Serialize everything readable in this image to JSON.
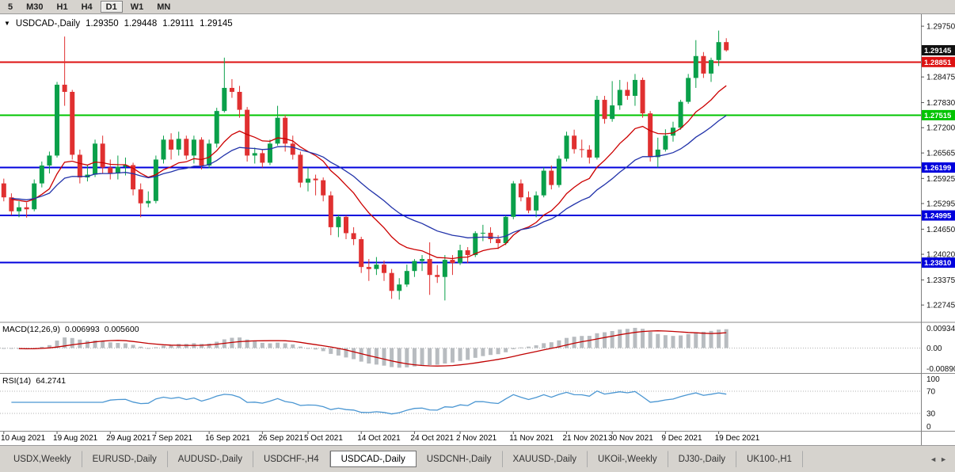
{
  "toolbar": {
    "timeframes": [
      {
        "label": "5",
        "active": false
      },
      {
        "label": "M30",
        "active": false
      },
      {
        "label": "H1",
        "active": false
      },
      {
        "label": "H4",
        "active": false
      },
      {
        "label": "D1",
        "active": true
      },
      {
        "label": "W1",
        "active": false
      },
      {
        "label": "MN",
        "active": false
      }
    ]
  },
  "title": {
    "symbol": "USDCAD-,Daily",
    "open": "1.29350",
    "high": "1.29448",
    "low": "1.29111",
    "close": "1.29145"
  },
  "indicators": {
    "macd": {
      "name": "MACD(12,26,9)",
      "main": "0.006993",
      "signal": "0.005600",
      "fast": 12,
      "slow": 26,
      "smoothing": 9,
      "ylim": [
        -0.0105,
        0.0105
      ],
      "axis": [
        {
          "label": "0.009345",
          "value": 0.009345
        },
        {
          "label": "0.00",
          "value": 0
        },
        {
          "label": "-0.008901",
          "value": -0.008901
        }
      ],
      "hist_color": "#b8bcc0",
      "signal_color": "#c00000"
    },
    "rsi": {
      "name": "RSI(14)",
      "value": "64.2741",
      "period": 14,
      "ylim": [
        0,
        100
      ],
      "levels": [
        70,
        30
      ],
      "axis": [
        {
          "label": "100",
          "value": 100
        },
        {
          "label": "70",
          "value": 70
        },
        {
          "label": "30",
          "value": 30
        },
        {
          "label": "0",
          "value": 0
        }
      ],
      "color": "#4a96d2"
    }
  },
  "price_axis": {
    "ticks": [
      {
        "label": "1.29750",
        "value": 1.2975
      },
      {
        "label": "1.28475",
        "value": 1.28475
      },
      {
        "label": "1.27830",
        "value": 1.2783
      },
      {
        "label": "1.27200",
        "value": 1.272
      },
      {
        "label": "1.26565",
        "value": 1.26565
      },
      {
        "label": "1.25925",
        "value": 1.25925
      },
      {
        "label": "1.25295",
        "value": 1.25295
      },
      {
        "label": "1.24650",
        "value": 1.2465
      },
      {
        "label": "1.24020",
        "value": 1.2402
      },
      {
        "label": "1.23375",
        "value": 1.23375
      },
      {
        "label": "1.22745",
        "value": 1.22745
      }
    ]
  },
  "levels": [
    {
      "label": "1.29145",
      "value": 1.29145,
      "color": "#101010",
      "line": false,
      "kind": "current-price"
    },
    {
      "label": "1.28851",
      "value": 1.28851,
      "color": "#dd1111",
      "line": true,
      "kind": "resistance"
    },
    {
      "label": "1.27515",
      "value": 1.27515,
      "color": "#00c400",
      "line": true,
      "kind": "support"
    },
    {
      "label": "1.26199",
      "value": 1.26199,
      "color": "#0000dd",
      "line": true,
      "kind": "support"
    },
    {
      "label": "1.24995",
      "value": 1.24995,
      "color": "#0000dd",
      "line": true,
      "kind": "support"
    },
    {
      "label": "1.23810",
      "value": 1.2381,
      "color": "#0000dd",
      "line": true,
      "kind": "support"
    }
  ],
  "time_axis": {
    "labels": [
      {
        "text": "10 Aug 2021",
        "i": 0
      },
      {
        "text": "19 Aug 2021",
        "i": 7
      },
      {
        "text": "29 Aug 2021",
        "i": 14
      },
      {
        "text": "7 Sep 2021",
        "i": 20
      },
      {
        "text": "16 Sep 2021",
        "i": 27
      },
      {
        "text": "26 Sep 2021",
        "i": 34
      },
      {
        "text": "5 Oct 2021",
        "i": 40
      },
      {
        "text": "14 Oct 2021",
        "i": 47
      },
      {
        "text": "24 Oct 2021",
        "i": 54
      },
      {
        "text": "2 Nov 2021",
        "i": 60
      },
      {
        "text": "11 Nov 2021",
        "i": 67
      },
      {
        "text": "21 Nov 2021",
        "i": 74
      },
      {
        "text": "30 Nov 2021",
        "i": 80
      },
      {
        "text": "9 Dec 2021",
        "i": 87
      },
      {
        "text": "19 Dec 2021",
        "i": 94
      }
    ]
  },
  "chart_data": {
    "type": "candlestick",
    "symbol": "USDCAD",
    "period": "Daily",
    "ylim": [
      1.2235,
      1.3005
    ],
    "up_color": "#0aa04a",
    "down_color": "#e03030",
    "overlays": [
      {
        "type": "ema",
        "period": 13,
        "color": "#cc0000",
        "name": "ma-fast"
      },
      {
        "type": "ema",
        "period": 26,
        "color": "#2233aa",
        "name": "ma-slow"
      }
    ],
    "ohlc": [
      [
        1.258,
        1.2592,
        1.2535,
        1.2545
      ],
      [
        1.2545,
        1.2555,
        1.25,
        1.251
      ],
      [
        1.251,
        1.2535,
        1.2495,
        1.252
      ],
      [
        1.252,
        1.2532,
        1.2494,
        1.2515
      ],
      [
        1.2515,
        1.259,
        1.251,
        1.258
      ],
      [
        1.258,
        1.2635,
        1.257,
        1.2625
      ],
      [
        1.2625,
        1.266,
        1.2605,
        1.265
      ],
      [
        1.265,
        1.2835,
        1.2645,
        1.2828
      ],
      [
        1.2828,
        1.2949,
        1.2775,
        1.281
      ],
      [
        1.281,
        1.2815,
        1.264,
        1.2652
      ],
      [
        1.2652,
        1.2665,
        1.258,
        1.2595
      ],
      [
        1.2595,
        1.2625,
        1.2585,
        1.2602
      ],
      [
        1.2602,
        1.269,
        1.2596,
        1.268
      ],
      [
        1.268,
        1.27,
        1.2605,
        1.262
      ],
      [
        1.262,
        1.264,
        1.259,
        1.2605
      ],
      [
        1.2605,
        1.265,
        1.259,
        1.2622
      ],
      [
        1.2622,
        1.2645,
        1.26,
        1.2626
      ],
      [
        1.2626,
        1.2632,
        1.255,
        1.2565
      ],
      [
        1.2565,
        1.258,
        1.2495,
        1.253
      ],
      [
        1.253,
        1.256,
        1.252,
        1.2536
      ],
      [
        1.2536,
        1.265,
        1.253,
        1.264
      ],
      [
        1.264,
        1.27,
        1.263,
        1.269
      ],
      [
        1.269,
        1.2706,
        1.264,
        1.2665
      ],
      [
        1.2665,
        1.271,
        1.265,
        1.2692
      ],
      [
        1.2692,
        1.27,
        1.264,
        1.265
      ],
      [
        1.265,
        1.27,
        1.263,
        1.269
      ],
      [
        1.269,
        1.2696,
        1.2615,
        1.2625
      ],
      [
        1.2625,
        1.269,
        1.2618,
        1.268
      ],
      [
        1.268,
        1.277,
        1.267,
        1.2762
      ],
      [
        1.2762,
        1.2896,
        1.2758,
        1.282
      ],
      [
        1.282,
        1.2842,
        1.2795,
        1.281
      ],
      [
        1.281,
        1.2825,
        1.2745,
        1.2765
      ],
      [
        1.2765,
        1.2772,
        1.2635,
        1.265
      ],
      [
        1.265,
        1.267,
        1.263,
        1.2656
      ],
      [
        1.2656,
        1.2665,
        1.262,
        1.2632
      ],
      [
        1.2632,
        1.269,
        1.2626,
        1.268
      ],
      [
        1.268,
        1.2775,
        1.2675,
        1.2745
      ],
      [
        1.2745,
        1.2752,
        1.266,
        1.268
      ],
      [
        1.268,
        1.27,
        1.264,
        1.2652
      ],
      [
        1.2652,
        1.266,
        1.257,
        1.2582
      ],
      [
        1.2582,
        1.262,
        1.256,
        1.2592
      ],
      [
        1.2592,
        1.2602,
        1.255,
        1.2588
      ],
      [
        1.2588,
        1.2595,
        1.2535,
        1.255
      ],
      [
        1.255,
        1.256,
        1.245,
        1.247
      ],
      [
        1.247,
        1.2502,
        1.2445,
        1.2496
      ],
      [
        1.2496,
        1.25,
        1.244,
        1.2455
      ],
      [
        1.2455,
        1.247,
        1.2425,
        1.244
      ],
      [
        1.244,
        1.2446,
        1.2355,
        1.237
      ],
      [
        1.237,
        1.239,
        1.2335,
        1.2365
      ],
      [
        1.2365,
        1.2395,
        1.235,
        1.2376
      ],
      [
        1.2376,
        1.2386,
        1.2335,
        1.2355
      ],
      [
        1.2355,
        1.2365,
        1.229,
        1.231
      ],
      [
        1.231,
        1.2342,
        1.2288,
        1.2326
      ],
      [
        1.2326,
        1.2376,
        1.232,
        1.236
      ],
      [
        1.236,
        1.239,
        1.2345,
        1.2385
      ],
      [
        1.2385,
        1.24,
        1.236,
        1.239
      ],
      [
        1.239,
        1.2432,
        1.23,
        1.235
      ],
      [
        1.235,
        1.2375,
        1.233,
        1.2345
      ],
      [
        1.2345,
        1.24,
        1.2286,
        1.2388
      ],
      [
        1.2388,
        1.24,
        1.235,
        1.238
      ],
      [
        1.238,
        1.2426,
        1.2375,
        1.2412
      ],
      [
        1.2412,
        1.242,
        1.238,
        1.24
      ],
      [
        1.24,
        1.246,
        1.2395,
        1.2455
      ],
      [
        1.2455,
        1.2476,
        1.2435,
        1.2456
      ],
      [
        1.2456,
        1.247,
        1.243,
        1.244
      ],
      [
        1.244,
        1.245,
        1.2415,
        1.243
      ],
      [
        1.243,
        1.25,
        1.2425,
        1.2496
      ],
      [
        1.2496,
        1.2586,
        1.249,
        1.258
      ],
      [
        1.258,
        1.259,
        1.2535,
        1.2545
      ],
      [
        1.2545,
        1.256,
        1.2505,
        1.2512
      ],
      [
        1.2512,
        1.256,
        1.2495,
        1.255
      ],
      [
        1.255,
        1.262,
        1.2545,
        1.2612
      ],
      [
        1.2612,
        1.2625,
        1.2565,
        1.2576
      ],
      [
        1.2576,
        1.265,
        1.257,
        1.2642
      ],
      [
        1.2642,
        1.271,
        1.2635,
        1.27
      ],
      [
        1.27,
        1.2715,
        1.2655,
        1.2666
      ],
      [
        1.2666,
        1.269,
        1.2645,
        1.2665
      ],
      [
        1.2665,
        1.2676,
        1.263,
        1.2645
      ],
      [
        1.2645,
        1.28,
        1.264,
        1.279
      ],
      [
        1.279,
        1.28,
        1.273,
        1.2742
      ],
      [
        1.2742,
        1.2837,
        1.2735,
        1.2776
      ],
      [
        1.2776,
        1.284,
        1.2765,
        1.2815
      ],
      [
        1.2815,
        1.2835,
        1.279,
        1.28
      ],
      [
        1.28,
        1.2855,
        1.2775,
        1.284
      ],
      [
        1.284,
        1.2846,
        1.2745,
        1.2756
      ],
      [
        1.2756,
        1.2762,
        1.2635,
        1.2646
      ],
      [
        1.2646,
        1.2695,
        1.262,
        1.2665
      ],
      [
        1.2665,
        1.2716,
        1.266,
        1.27
      ],
      [
        1.27,
        1.2735,
        1.2685,
        1.272
      ],
      [
        1.272,
        1.279,
        1.2715,
        1.2785
      ],
      [
        1.2785,
        1.2855,
        1.278,
        1.2845
      ],
      [
        1.2845,
        1.294,
        1.282,
        1.29
      ],
      [
        1.29,
        1.291,
        1.2845,
        1.2856
      ],
      [
        1.2856,
        1.2896,
        1.2835,
        1.289
      ],
      [
        1.289,
        1.2964,
        1.2875,
        1.2935
      ],
      [
        1.2935,
        1.29448,
        1.29111,
        1.29145
      ]
    ]
  },
  "tabs": {
    "items": [
      {
        "label": "USDX,Weekly",
        "active": false
      },
      {
        "label": "EURUSD-,Daily",
        "active": false
      },
      {
        "label": "AUDUSD-,Daily",
        "active": false
      },
      {
        "label": "USDCHF-,H4",
        "active": false
      },
      {
        "label": "USDCAD-,Daily",
        "active": true
      },
      {
        "label": "USDCNH-,Daily",
        "active": false
      },
      {
        "label": "XAUUSD-,Daily",
        "active": false
      },
      {
        "label": "UKOil-,Weekly",
        "active": false
      },
      {
        "label": "DJ30-,Daily",
        "active": false
      },
      {
        "label": "UK100-,H1",
        "active": false
      }
    ]
  }
}
